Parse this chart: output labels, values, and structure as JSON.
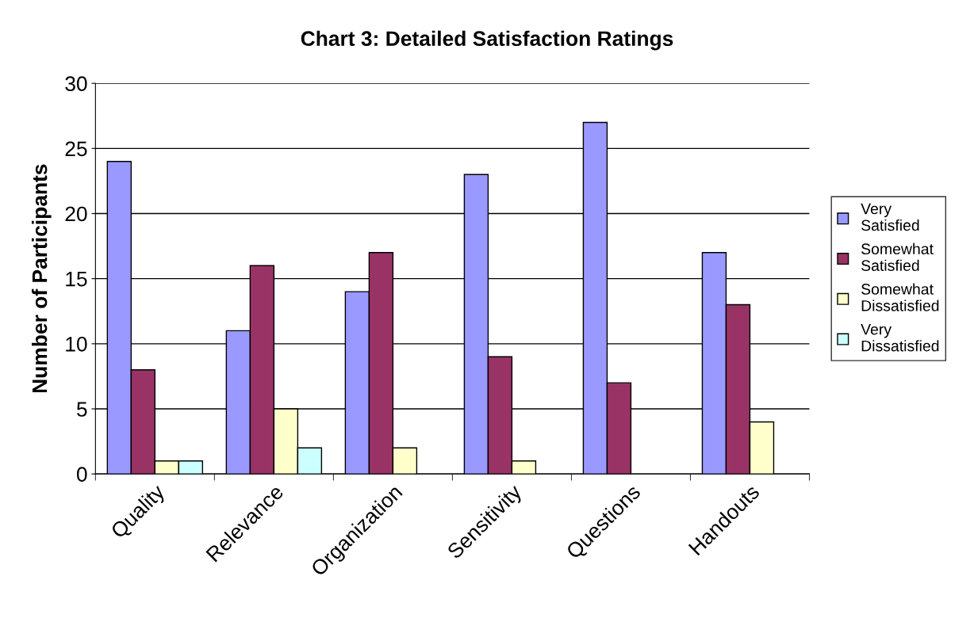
{
  "chart_data": {
    "type": "bar",
    "title": "Chart 3: Detailed Satisfaction Ratings",
    "ylabel": "Number of Participants",
    "categories": [
      "Quality",
      "Relevance",
      "Organization",
      "Sensitivity",
      "Questions",
      "Handouts"
    ],
    "series": [
      {
        "name": "Very Satisfied",
        "color": "#9999ff",
        "values": [
          24,
          11,
          14,
          23,
          27,
          17
        ]
      },
      {
        "name": "Somewhat Satisfied",
        "color": "#993366",
        "values": [
          8,
          16,
          17,
          9,
          7,
          13
        ]
      },
      {
        "name": "Somewhat Dissatisfied",
        "color": "#ffffcc",
        "values": [
          1,
          5,
          2,
          1,
          null,
          4
        ]
      },
      {
        "name": "Very Dissatisfied",
        "color": "#ccffff",
        "values": [
          1,
          2,
          null,
          null,
          null,
          null
        ]
      }
    ],
    "ylim": [
      0,
      30
    ],
    "yticks": [
      0,
      5,
      10,
      15,
      20,
      25,
      30
    ],
    "grid": "y",
    "legend": "right"
  }
}
